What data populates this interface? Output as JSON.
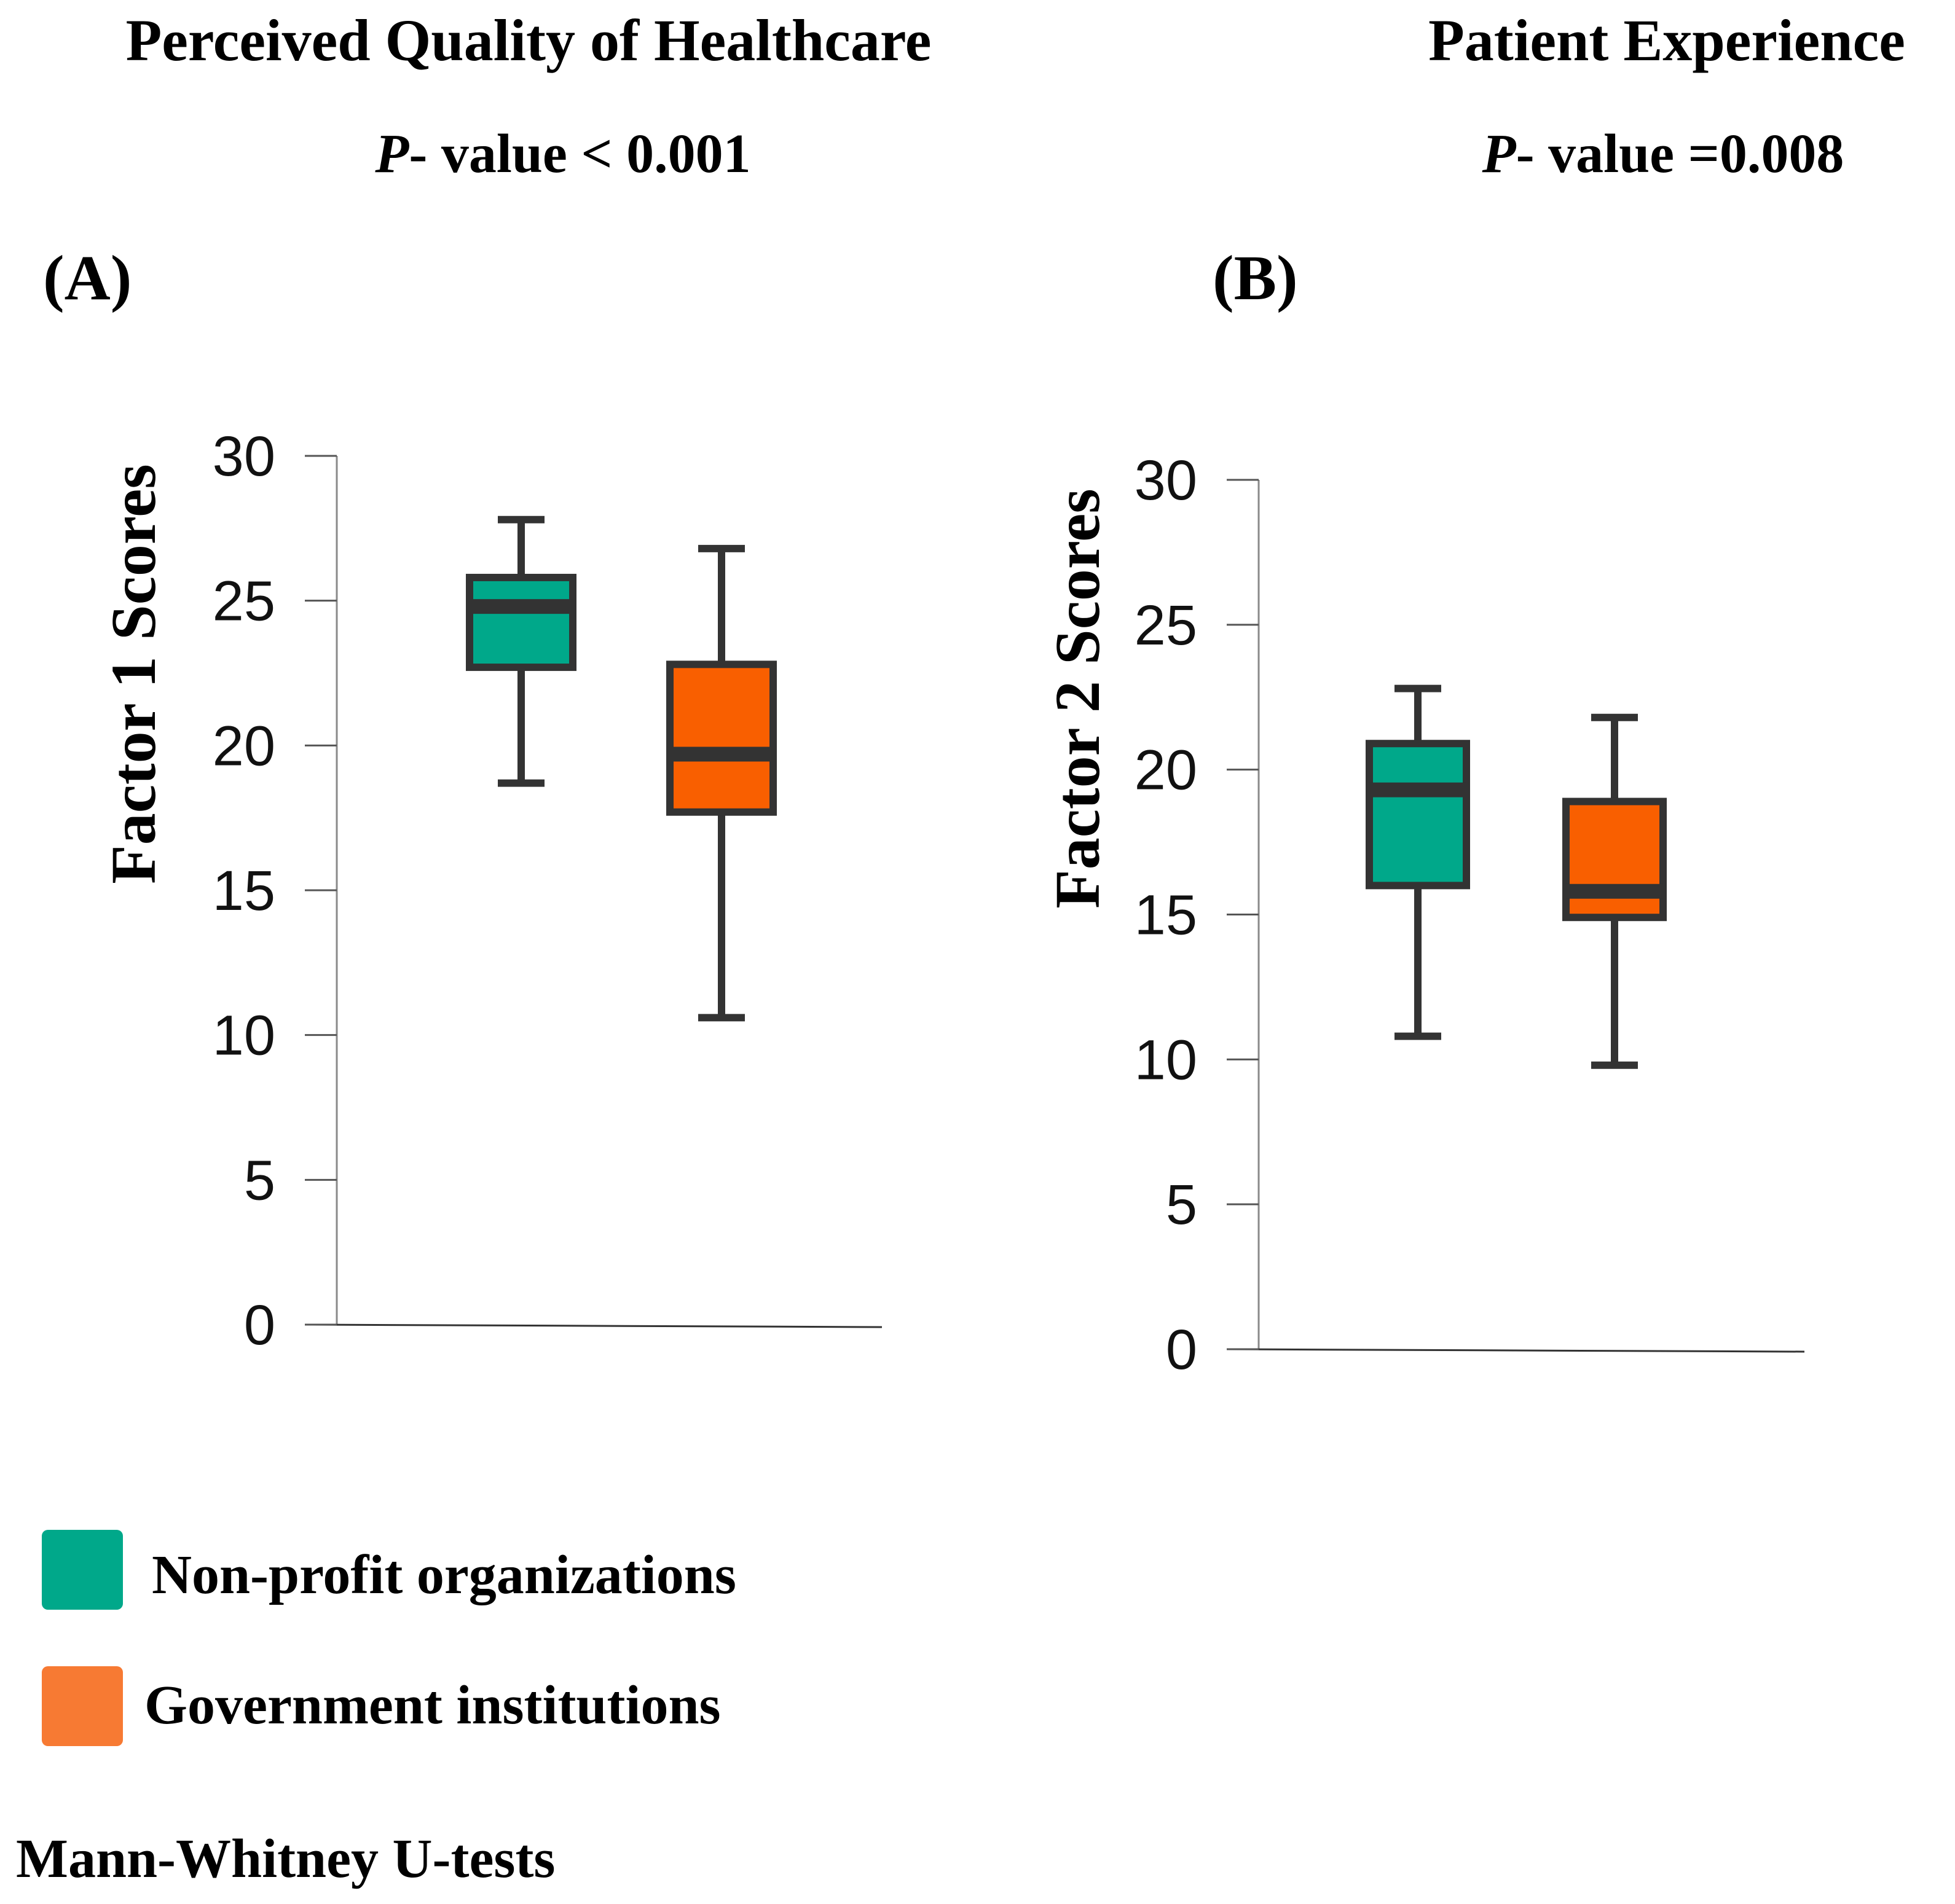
{
  "chart_data": [
    {
      "type": "boxplot",
      "panel_label": "(A)",
      "title": "Perceived Quality of Healthcare",
      "subtitle_italic": "P",
      "subtitle_rest": "- value < 0.001",
      "ylabel": "Factor 1 Scores",
      "xlabel": "",
      "ylim": [
        0,
        30
      ],
      "yticks": [
        "0",
        "5",
        "10",
        "15",
        "20",
        "25",
        "30"
      ],
      "series": [
        {
          "name": "Non-profit organizations",
          "color": "#00A88A",
          "min": 18.7,
          "q1": 22.7,
          "median": 24.8,
          "q3": 25.8,
          "max": 27.8
        },
        {
          "name": "Government institutions",
          "color": "#F95F00",
          "min": 10.6,
          "q1": 17.7,
          "median": 19.7,
          "q3": 22.8,
          "max": 26.8
        }
      ]
    },
    {
      "type": "boxplot",
      "panel_label": "(B)",
      "title": "Patient Experience",
      "subtitle_italic": "P",
      "subtitle_rest": "- value =0.008",
      "ylabel": "Factor 2 Scores",
      "xlabel": "",
      "ylim": [
        0,
        30
      ],
      "yticks": [
        "0",
        "5",
        "10",
        "15",
        "20",
        "25",
        "30"
      ],
      "series": [
        {
          "name": "Non-profit organizations",
          "color": "#00A88A",
          "min": 10.8,
          "q1": 16.0,
          "median": 19.3,
          "q3": 20.9,
          "max": 22.8
        },
        {
          "name": "Government institutions",
          "color": "#F95F00",
          "min": 9.8,
          "q1": 14.9,
          "median": 15.8,
          "q3": 18.9,
          "max": 21.8
        }
      ]
    }
  ],
  "legend": {
    "items": [
      {
        "label": "Non-profit organizations",
        "color": "#00A88A"
      },
      {
        "label": "Government institutions",
        "color": "#F77A33"
      }
    ]
  },
  "footnote": "Mann-Whitney U-tests"
}
